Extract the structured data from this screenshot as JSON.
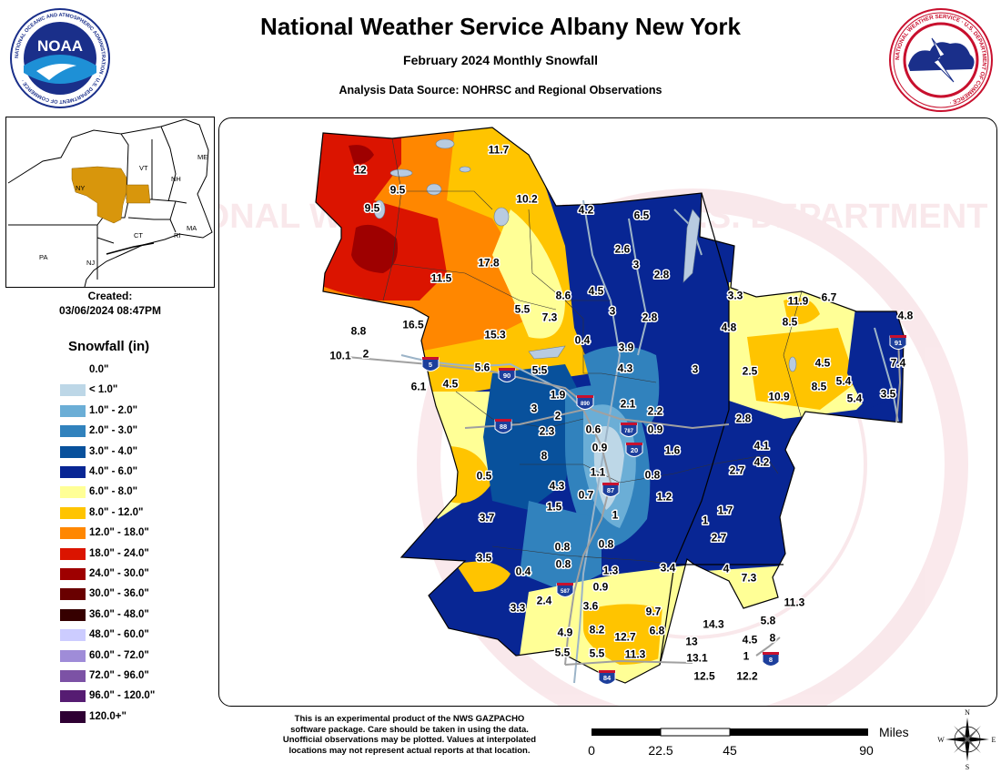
{
  "header": {
    "title": "National Weather Service Albany New York",
    "subtitle": "February 2024 Monthly Snowfall",
    "source": "Analysis Data Source: NOHRSC and Regional Observations"
  },
  "logos": {
    "noaa": {
      "center_text": "NOAA",
      "ring_text": "NATIONAL OCEANIC AND ATMOSPHERIC ADMINISTRATION · U.S. DEPARTMENT OF COMMERCE ·"
    },
    "nws": {
      "ring_text": "NATIONAL WEATHER SERVICE · U.S. DEPARTMENT OF COMMERCE ·"
    }
  },
  "inset_map": {
    "labels": [
      {
        "id": "me",
        "text": "ME"
      },
      {
        "id": "vt",
        "text": "VT"
      },
      {
        "id": "nh",
        "text": "NH"
      },
      {
        "id": "ny",
        "text": "NY"
      },
      {
        "id": "ma",
        "text": "MA"
      },
      {
        "id": "ct",
        "text": "CT"
      },
      {
        "id": "ri",
        "text": "RI"
      },
      {
        "id": "pa",
        "text": "PA"
      },
      {
        "id": "nj",
        "text": "NJ"
      }
    ],
    "highlight_color": "#d8960c"
  },
  "created": {
    "label": "Created:",
    "date": "03/06/2024 08:47PM"
  },
  "legend": {
    "title": "Snowfall (in)",
    "items": [
      {
        "label": "0.0\"",
        "color": "#ffffff"
      },
      {
        "label": "< 1.0\"",
        "color": "#bdd7e7"
      },
      {
        "label": "1.0\" - 2.0\"",
        "color": "#6baed6"
      },
      {
        "label": "2.0\" - 3.0\"",
        "color": "#3182bd"
      },
      {
        "label": "3.0\" - 4.0\"",
        "color": "#08519c"
      },
      {
        "label": "4.0\" - 6.0\"",
        "color": "#082694"
      },
      {
        "label": "6.0\" - 8.0\"",
        "color": "#ffff96"
      },
      {
        "label": "8.0\" - 12.0\"",
        "color": "#ffc400"
      },
      {
        "label": "12.0\" - 18.0\"",
        "color": "#ff8700"
      },
      {
        "label": "18.0\" - 24.0\"",
        "color": "#db1400"
      },
      {
        "label": "24.0\" - 30.0\"",
        "color": "#9e0000"
      },
      {
        "label": "30.0\" - 36.0\"",
        "color": "#690000"
      },
      {
        "label": "36.0\" - 48.0\"",
        "color": "#360000"
      },
      {
        "label": "48.0\" - 60.0\"",
        "color": "#ccccff"
      },
      {
        "label": "60.0\" - 72.0\"",
        "color": "#9f8cd8"
      },
      {
        "label": "72.0\" - 96.0\"",
        "color": "#7c52a5"
      },
      {
        "label": "96.0\" - 120.0\"",
        "color": "#561c72"
      },
      {
        "label": "120.0+\"",
        "color": "#2e0033"
      }
    ]
  },
  "highways": [
    {
      "id": "i5",
      "text": "5"
    },
    {
      "id": "i90",
      "text": "90"
    },
    {
      "id": "i88",
      "text": "88"
    },
    {
      "id": "i890",
      "text": "890"
    },
    {
      "id": "i787",
      "text": "787"
    },
    {
      "id": "i20",
      "text": "20"
    },
    {
      "id": "i87",
      "text": "87"
    },
    {
      "id": "i587",
      "text": "587"
    },
    {
      "id": "i84",
      "text": "84"
    },
    {
      "id": "i91",
      "text": "91"
    },
    {
      "id": "i8",
      "text": "8"
    }
  ],
  "observations": [
    {
      "id": "o1",
      "value": "11.7"
    },
    {
      "id": "o2",
      "value": "12"
    },
    {
      "id": "o3",
      "value": "9.5"
    },
    {
      "id": "o4",
      "value": "9.5"
    },
    {
      "id": "o5",
      "value": "10.2"
    },
    {
      "id": "o6",
      "value": "4.2"
    },
    {
      "id": "o7",
      "value": "6.5"
    },
    {
      "id": "o8",
      "value": "2.6"
    },
    {
      "id": "o9",
      "value": "17.8"
    },
    {
      "id": "o10",
      "value": "3"
    },
    {
      "id": "o11",
      "value": "2.8"
    },
    {
      "id": "o12",
      "value": "11.5"
    },
    {
      "id": "o13",
      "value": "8.6"
    },
    {
      "id": "o14",
      "value": "4.5"
    },
    {
      "id": "o15",
      "value": "3"
    },
    {
      "id": "o16",
      "value": "3.3"
    },
    {
      "id": "o17",
      "value": "11.9"
    },
    {
      "id": "o18",
      "value": "6.7"
    },
    {
      "id": "o19",
      "value": "8.8"
    },
    {
      "id": "o20",
      "value": "16.5"
    },
    {
      "id": "o21",
      "value": "5.5"
    },
    {
      "id": "o22",
      "value": "7.3"
    },
    {
      "id": "o23",
      "value": "2.8"
    },
    {
      "id": "o24",
      "value": "8.5"
    },
    {
      "id": "o25",
      "value": "4.8"
    },
    {
      "id": "o26",
      "value": "4.8"
    },
    {
      "id": "o27",
      "value": "15.3"
    },
    {
      "id": "o28",
      "value": "0.4"
    },
    {
      "id": "o29",
      "value": "3.9"
    },
    {
      "id": "o30",
      "value": "10.1"
    },
    {
      "id": "o31",
      "value": "2"
    },
    {
      "id": "o32",
      "value": "4.3"
    },
    {
      "id": "o33",
      "value": "3"
    },
    {
      "id": "o34",
      "value": "7.4"
    },
    {
      "id": "o35",
      "value": "5.6"
    },
    {
      "id": "o36",
      "value": "5.5"
    },
    {
      "id": "o37",
      "value": "4.5"
    },
    {
      "id": "o38",
      "value": "2.5"
    },
    {
      "id": "o39",
      "value": "6.1"
    },
    {
      "id": "o40",
      "value": "4.5"
    },
    {
      "id": "o41",
      "value": "5.4"
    },
    {
      "id": "o42",
      "value": "8.5"
    },
    {
      "id": "o43",
      "value": "1.9"
    },
    {
      "id": "o44",
      "value": "10.9"
    },
    {
      "id": "o45",
      "value": "5.4"
    },
    {
      "id": "o46",
      "value": "3.5"
    },
    {
      "id": "o47",
      "value": "3"
    },
    {
      "id": "o48",
      "value": "2.1"
    },
    {
      "id": "o49",
      "value": "2.2"
    },
    {
      "id": "o50",
      "value": "2"
    },
    {
      "id": "o51",
      "value": "2.8"
    },
    {
      "id": "o52",
      "value": "2.3"
    },
    {
      "id": "o53",
      "value": "0.6"
    },
    {
      "id": "o54",
      "value": "0.9"
    },
    {
      "id": "o55",
      "value": "0.9"
    },
    {
      "id": "o56",
      "value": "4.1"
    },
    {
      "id": "o57",
      "value": "8"
    },
    {
      "id": "o58",
      "value": "1.6"
    },
    {
      "id": "o59",
      "value": "4.2"
    },
    {
      "id": "o60",
      "value": "0.5"
    },
    {
      "id": "o61",
      "value": "1.1"
    },
    {
      "id": "o62",
      "value": "0.8"
    },
    {
      "id": "o63",
      "value": "2.7"
    },
    {
      "id": "o64",
      "value": "4.3"
    },
    {
      "id": "o65",
      "value": "0.7"
    },
    {
      "id": "o66",
      "value": "1.2"
    },
    {
      "id": "o67",
      "value": "1.5"
    },
    {
      "id": "o68",
      "value": "1.7"
    },
    {
      "id": "o69",
      "value": "3.7"
    },
    {
      "id": "o70",
      "value": "1"
    },
    {
      "id": "o71",
      "value": "1"
    },
    {
      "id": "o72",
      "value": "2.7"
    },
    {
      "id": "o73",
      "value": "0.8"
    },
    {
      "id": "o74",
      "value": "0.8"
    },
    {
      "id": "o75",
      "value": "3.5"
    },
    {
      "id": "o76",
      "value": "0.8"
    },
    {
      "id": "o77",
      "value": "0.4"
    },
    {
      "id": "o78",
      "value": "1.3"
    },
    {
      "id": "o79",
      "value": "3.4"
    },
    {
      "id": "o80",
      "value": "4"
    },
    {
      "id": "o81",
      "value": "7.3"
    },
    {
      "id": "o82",
      "value": "0.9"
    },
    {
      "id": "o83",
      "value": "2.4"
    },
    {
      "id": "o84",
      "value": "3.3"
    },
    {
      "id": "o85",
      "value": "3.6"
    },
    {
      "id": "o86",
      "value": "11.3"
    },
    {
      "id": "o87",
      "value": "9.7"
    },
    {
      "id": "o88",
      "value": "14.3"
    },
    {
      "id": "o89",
      "value": "5.8"
    },
    {
      "id": "o90",
      "value": "4.9"
    },
    {
      "id": "o91",
      "value": "8.2"
    },
    {
      "id": "o92",
      "value": "12.7"
    },
    {
      "id": "o93",
      "value": "6.8"
    },
    {
      "id": "o94",
      "value": "13"
    },
    {
      "id": "o95",
      "value": "4.5"
    },
    {
      "id": "o96",
      "value": "8"
    },
    {
      "id": "o97",
      "value": "5.5"
    },
    {
      "id": "o98",
      "value": "5.5"
    },
    {
      "id": "o99",
      "value": "11.3"
    },
    {
      "id": "o100",
      "value": "13.1"
    },
    {
      "id": "o101",
      "value": "1"
    },
    {
      "id": "o102",
      "value": "12.5"
    },
    {
      "id": "o103",
      "value": "12.2"
    }
  ],
  "watermark": {
    "text": "NATIONAL WEATHER SERVICE · U.S. DEPARTMENT OF COMMERCE"
  },
  "disclaimer": [
    "This is an experimental product of the NWS GAZPACHO",
    "software package. Care should be taken in using the data.",
    "Unofficial observations may be plotted. Values at interpolated",
    "locations may not represent actual reports at that location."
  ],
  "scale_bar": {
    "unit": "Miles",
    "ticks": [
      "0",
      "22.5",
      "45",
      "90"
    ]
  },
  "compass": {
    "n": "N",
    "s": "S",
    "e": "E",
    "w": "W"
  }
}
